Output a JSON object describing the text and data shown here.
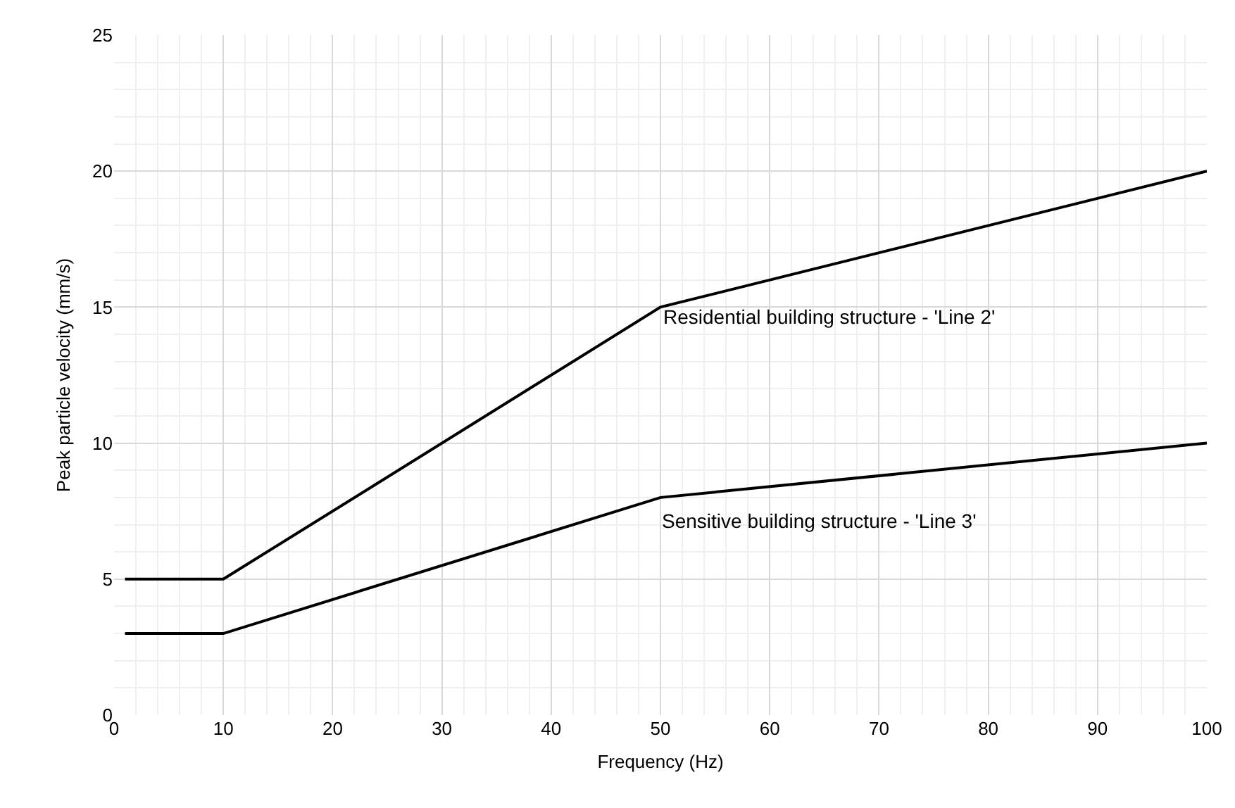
{
  "chart_data": {
    "type": "line",
    "xlabel": "Frequency (Hz)",
    "ylabel": "Peak particle velocity (mm/s)",
    "series": [
      {
        "color": "#000000",
        "x": [
          1,
          10,
          50,
          100
        ],
        "values": [
          5,
          5,
          15,
          20
        ]
      },
      {
        "color": "#000000",
        "x": [
          1,
          10,
          50,
          100
        ],
        "values": [
          3,
          3,
          8,
          10
        ]
      }
    ],
    "xlim": [
      0,
      100
    ],
    "xticks": [
      0,
      10,
      20,
      30,
      40,
      50,
      60,
      70,
      80,
      90,
      100
    ],
    "ylim": [
      0,
      25
    ],
    "yticks": [
      0,
      5,
      10,
      15,
      20,
      25
    ],
    "grid": true,
    "marker": "none",
    "line_style": "solid",
    "annotations": [
      "Residential building structure - 'Line 2'",
      "Sensitive building structure - 'Line 3'"
    ]
  }
}
